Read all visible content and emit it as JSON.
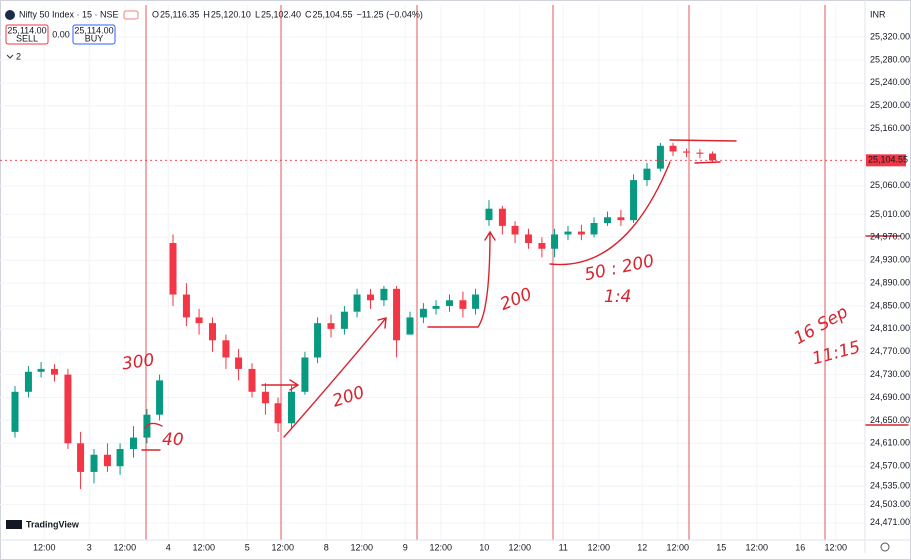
{
  "chart_data": {
    "type": "candlestick",
    "title": "Nifty 50 Index · 15 · NSE",
    "legend_ohlc": [
      {
        "label": "O",
        "value": "25,116.35"
      },
      {
        "label": "H",
        "value": "25,120.10"
      },
      {
        "label": "L",
        "value": "25,102.40"
      },
      {
        "label": "C",
        "value": "25,104.55"
      }
    ],
    "change": "−11.25 (−0.04%)",
    "sell_price": "25,114.00",
    "sell_label": "SELL",
    "spread": "0.00",
    "buy_price": "25,114.00",
    "buy_label": "BUY",
    "indicator_count": "2",
    "currency": "INR",
    "brand": "TradingView",
    "last_price_label": "25,104.55",
    "up_color": "#089981",
    "down_color": "#f23645",
    "annotations": [
      "300",
      "40",
      "200",
      "200",
      "50 : 200",
      "1:4",
      "16 Sep",
      "11:15"
    ],
    "xlim": [
      -0.13,
      10.82
    ],
    "ylim": [
      24441,
      25376
    ],
    "xticks": [
      {
        "value": 0.43,
        "label": "12:00"
      },
      {
        "value": 1,
        "label": "3"
      },
      {
        "value": 1.45,
        "label": "12:00"
      },
      {
        "value": 2,
        "label": "4"
      },
      {
        "value": 2.45,
        "label": "12:00"
      },
      {
        "value": 3,
        "label": "5"
      },
      {
        "value": 3.45,
        "label": "12:00"
      },
      {
        "value": 4,
        "label": "8"
      },
      {
        "value": 4.45,
        "label": "12:00"
      },
      {
        "value": 5,
        "label": "9"
      },
      {
        "value": 5.45,
        "label": "12:00"
      },
      {
        "value": 6,
        "label": "10"
      },
      {
        "value": 6.45,
        "label": "12:00"
      },
      {
        "value": 7,
        "label": "11"
      },
      {
        "value": 7.45,
        "label": "12:00"
      },
      {
        "value": 8,
        "label": "12"
      },
      {
        "value": 8.45,
        "label": "12:00"
      },
      {
        "value": 9,
        "label": "15"
      },
      {
        "value": 9.45,
        "label": "12:00"
      },
      {
        "value": 10,
        "label": "16"
      },
      {
        "value": 10.45,
        "label": "12:00"
      }
    ],
    "yticks": [
      {
        "value": 25320,
        "label": "25,320.00"
      },
      {
        "value": 25280,
        "label": "25,280.00"
      },
      {
        "value": 25240,
        "label": "25,240.00"
      },
      {
        "value": 25200,
        "label": "25,200.00"
      },
      {
        "value": 25160,
        "label": "25,160.00"
      },
      {
        "value": 25060,
        "label": "25,060.00"
      },
      {
        "value": 25010,
        "label": "25,010.00"
      },
      {
        "value": 24970,
        "label": "24,970.00"
      },
      {
        "value": 24930,
        "label": "24,930.00"
      },
      {
        "value": 24890,
        "label": "24,890.00"
      },
      {
        "value": 24850,
        "label": "24,850.00"
      },
      {
        "value": 24810,
        "label": "24,810.00"
      },
      {
        "value": 24770,
        "label": "24,770.00"
      },
      {
        "value": 24730,
        "label": "24,730.00"
      },
      {
        "value": 24690,
        "label": "24,690.00"
      },
      {
        "value": 24650,
        "label": "24,650.00"
      },
      {
        "value": 24610,
        "label": "24,610.00"
      },
      {
        "value": 24570,
        "label": "24,570.00"
      },
      {
        "value": 24535,
        "label": "24,535.00"
      },
      {
        "value": 24503,
        "label": "24,503.00"
      },
      {
        "value": 24471,
        "label": "24,471.00"
      }
    ],
    "x": [
      0.06,
      0.23,
      0.39,
      0.56,
      0.73,
      0.89,
      1.06,
      1.23,
      1.39,
      1.56,
      1.73,
      1.89,
      2.06,
      2.23,
      2.39,
      2.56,
      2.73,
      2.89,
      3.06,
      3.23,
      3.39,
      3.56,
      3.73,
      3.89,
      4.06,
      4.23,
      4.39,
      4.56,
      4.73,
      4.89,
      5.06,
      5.23,
      5.39,
      5.56,
      5.73,
      5.89,
      6.06,
      6.23,
      6.39,
      6.56,
      6.73,
      6.89,
      7.06,
      7.23,
      7.39,
      7.56,
      7.73,
      7.89,
      8.06,
      8.23,
      8.39,
      8.56,
      8.73,
      8.89
    ],
    "open": [
      24630,
      24700,
      24735,
      24740,
      24730,
      24610,
      24560,
      24590,
      24570,
      24600,
      24620,
      24660,
      24960,
      24870,
      24830,
      24820,
      24790,
      24760,
      24740,
      24700,
      24680,
      24645,
      24700,
      24760,
      24820,
      24810,
      24840,
      24870,
      24860,
      24880,
      24800,
      24830,
      24845,
      24850,
      24860,
      24845,
      25000,
      25020,
      24990,
      24975,
      24960,
      24950,
      24975,
      24980,
      24975,
      24995,
      25005,
      25000,
      25070,
      25090,
      25130,
      25120,
      25118,
      25116.35
    ],
    "high": [
      24710,
      24745,
      24752,
      24748,
      24740,
      24630,
      24600,
      24610,
      24610,
      24640,
      24670,
      24730,
      24975,
      24890,
      24845,
      24830,
      24800,
      24775,
      24750,
      24715,
      24690,
      24710,
      24770,
      24830,
      24835,
      24850,
      24880,
      24880,
      24885,
      24885,
      24840,
      24855,
      24860,
      24870,
      24875,
      24880,
      25035,
      25025,
      24998,
      24985,
      24970,
      24985,
      24990,
      24992,
      25005,
      25015,
      25018,
      25080,
      25100,
      25135,
      25135,
      25125,
      25124,
      25120.1
    ],
    "low": [
      24620,
      24690,
      24725,
      24718,
      24600,
      24530,
      24540,
      24560,
      24555,
      24585,
      24610,
      24650,
      24850,
      24815,
      24800,
      24770,
      24740,
      24720,
      24690,
      24660,
      24630,
      24635,
      24695,
      24750,
      24795,
      24800,
      24830,
      24845,
      24850,
      24760,
      24805,
      24820,
      24835,
      24840,
      24830,
      24835,
      24990,
      24975,
      24960,
      24950,
      24935,
      24935,
      24965,
      24965,
      24970,
      24990,
      24990,
      24995,
      25060,
      25085,
      25112,
      25110,
      25108,
      25102.4
    ],
    "close": [
      24700,
      24735,
      24740,
      24730,
      24610,
      24560,
      24590,
      24570,
      24600,
      24620,
      24660,
      24720,
      24870,
      24830,
      24820,
      24790,
      24760,
      24740,
      24700,
      24680,
      24645,
      24700,
      24760,
      24820,
      24810,
      24840,
      24870,
      24860,
      24880,
      24790,
      24830,
      24845,
      24850,
      24860,
      24845,
      24870,
      25020,
      24990,
      24975,
      24960,
      24950,
      24975,
      24980,
      24975,
      24995,
      25005,
      25000,
      25070,
      25090,
      25130,
      25120,
      25118,
      25116,
      25104.55
    ]
  }
}
